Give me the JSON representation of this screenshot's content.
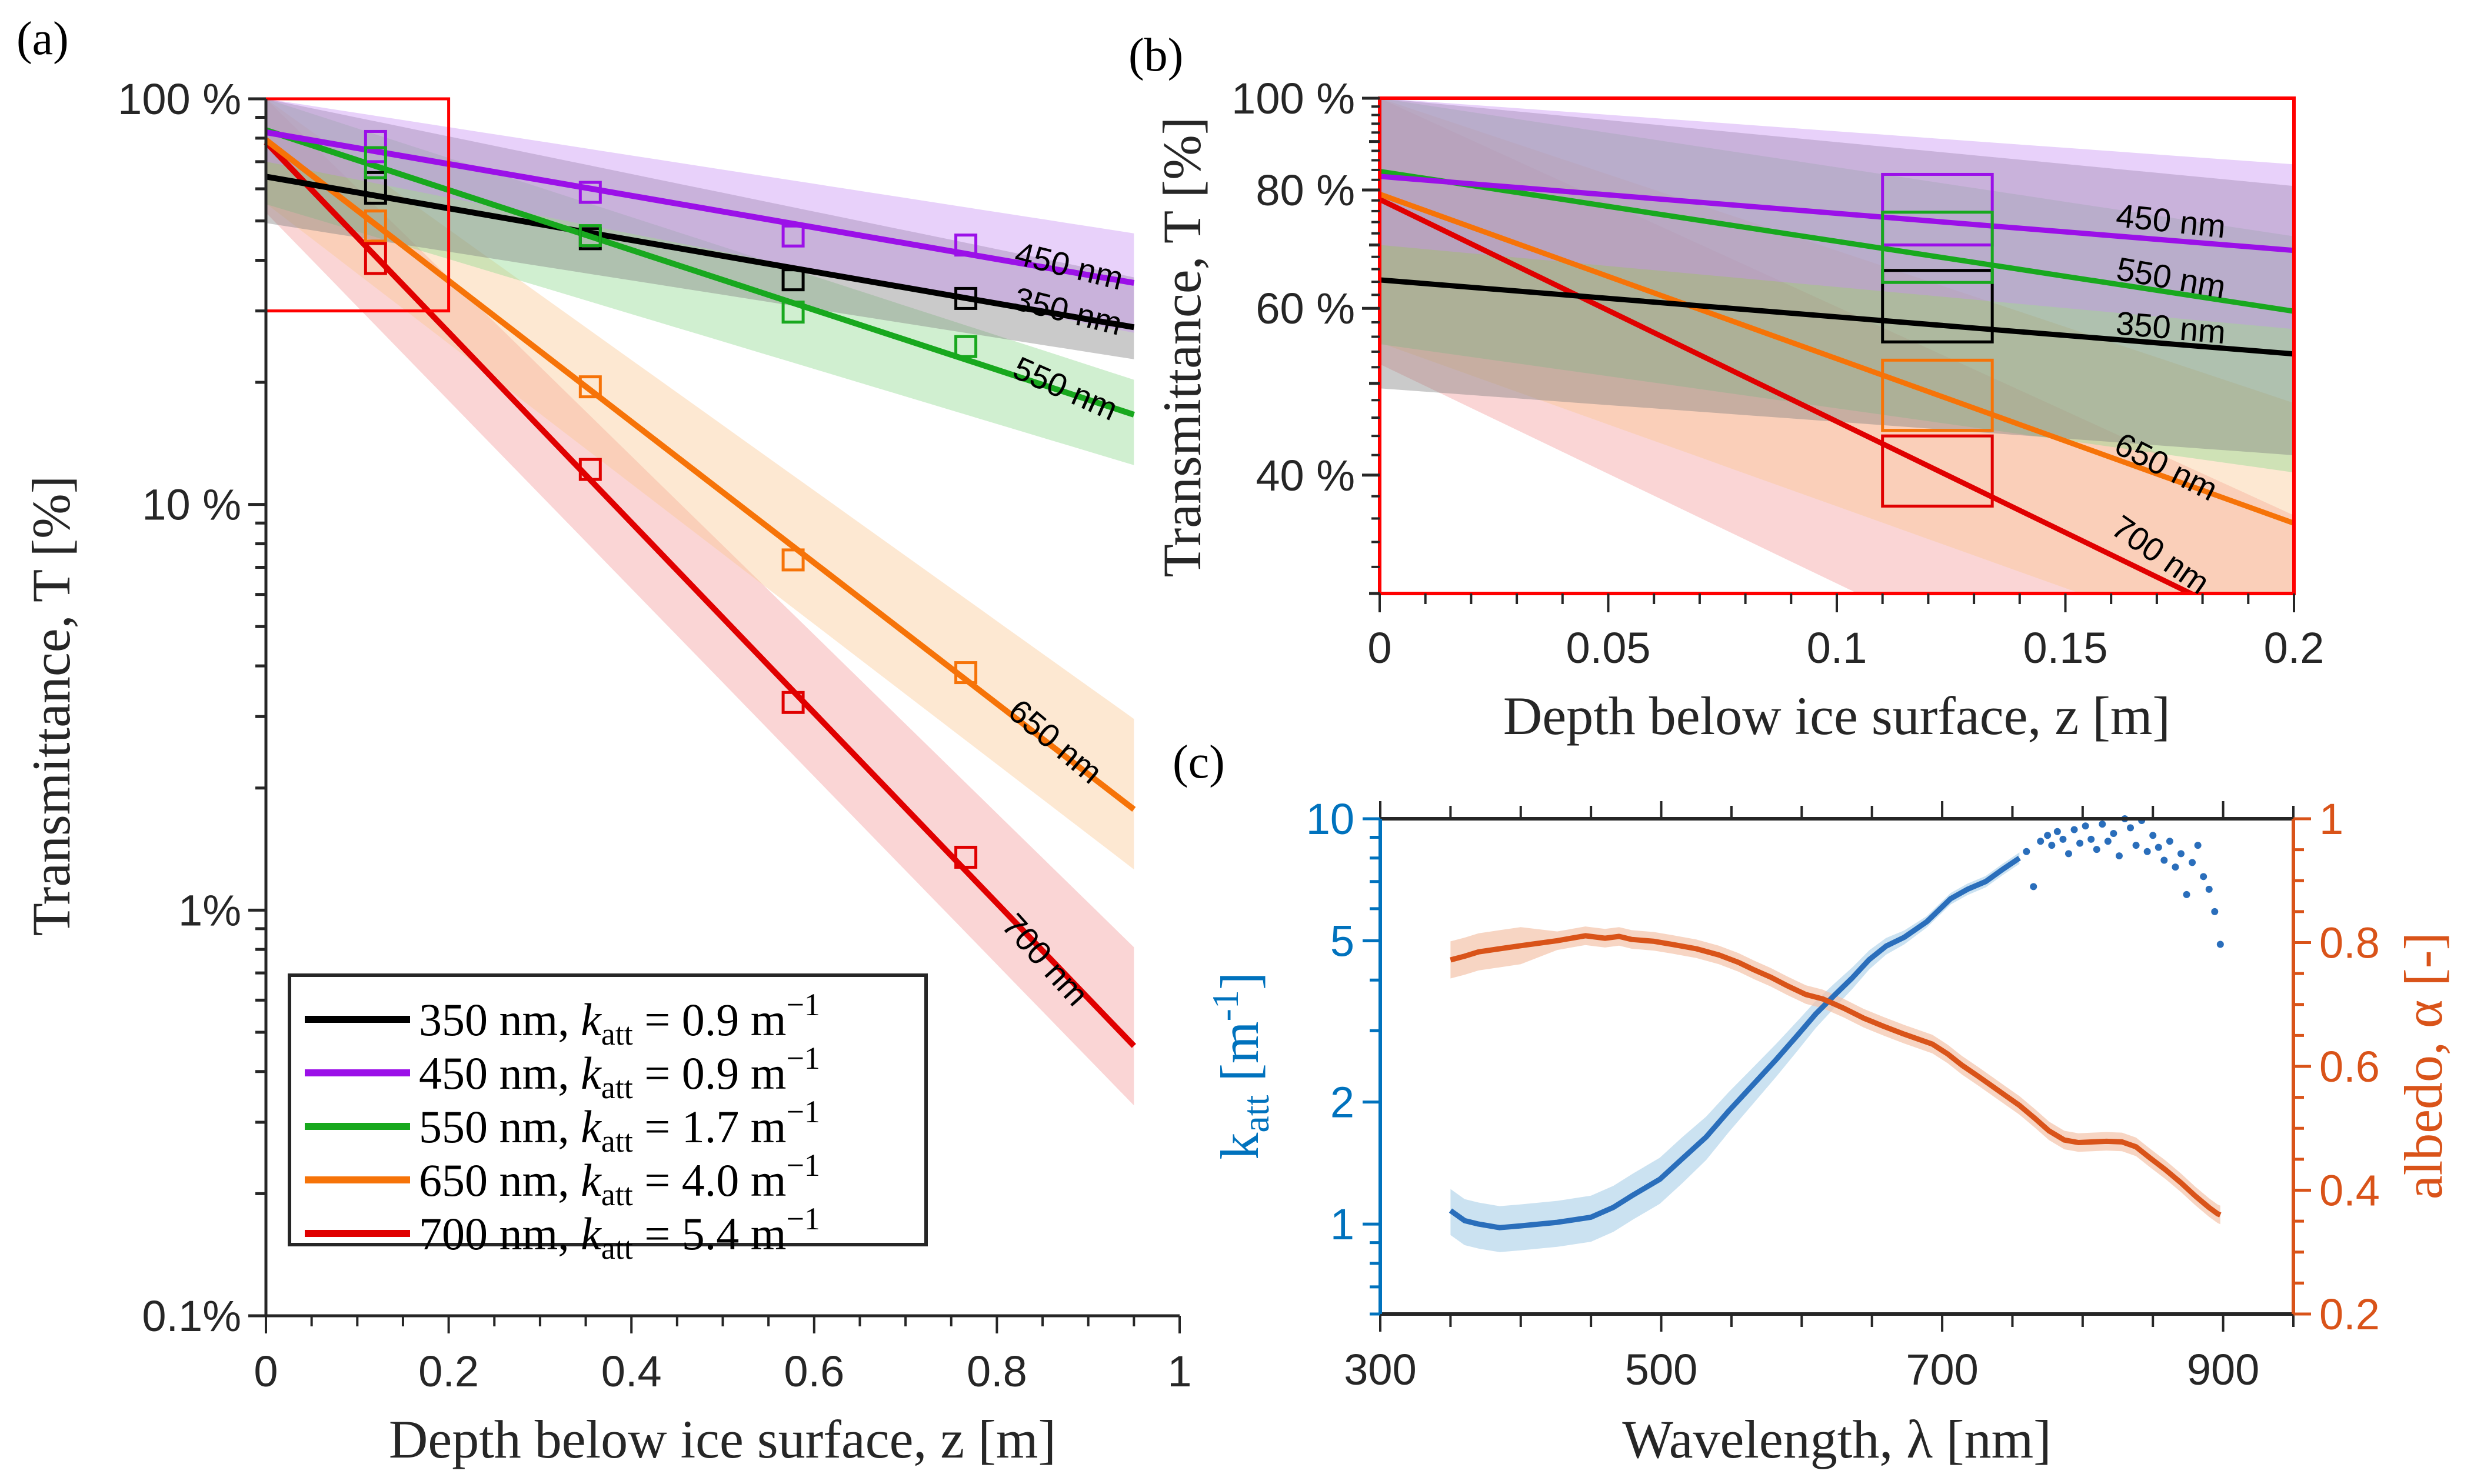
{
  "figure": {
    "panels": [
      "(a)",
      "(b)",
      "(c)"
    ]
  },
  "chart_data": [
    {
      "id": "a",
      "panel_label": "(a)",
      "type": "line",
      "title": "",
      "xlabel": "Depth below ice surface, z [m]",
      "ylabel": "Transmittance, T [%]",
      "xlim": [
        0,
        1
      ],
      "ylim": [
        0.1,
        100
      ],
      "yscale": "log",
      "xticks": [
        0,
        0.2,
        0.4,
        0.6,
        0.8,
        1
      ],
      "xtick_labels": [
        "0",
        "0.2",
        "0.4",
        "0.6",
        "0.8",
        "1"
      ],
      "yticks": [
        0.1,
        1,
        10,
        100
      ],
      "ytick_labels": [
        "0.1%",
        "1%",
        "10 %",
        "100 %"
      ],
      "grid": false,
      "legend_position": "bottom-left",
      "inset_box": {
        "xlim": [
          0,
          0.2
        ],
        "ylim": [
          30,
          100
        ],
        "color": "#ff0000"
      },
      "series": [
        {
          "name": "350 nm",
          "legend": "350 nm, k_att = 0.9 m^-1",
          "wavelength_nm": 350,
          "k_att": 0.9,
          "T0": 64.3,
          "color": "#000000",
          "band_color": "#808080",
          "x_end": 0.95,
          "band": {
            "lower_T0": 49.4,
            "lower_at_end": 22.8,
            "upper_T0": 100,
            "upper_at_end": 36.3
          },
          "points": [
            {
              "z": 0.12,
              "T_low": 55.3,
              "T_high": 65.8
            },
            {
              "z": 0.355,
              "T": 45.2
            },
            {
              "z": 0.577,
              "T": 35.8
            },
            {
              "z": 0.766,
              "T": 32.2
            }
          ],
          "label": "350 nm"
        },
        {
          "name": "450 nm",
          "legend": "450 nm, k_att = 0.9 m^-1",
          "wavelength_nm": 450,
          "k_att": 0.9,
          "T0": 82.7,
          "color": "#9b10e8",
          "band_color": "#c792f3",
          "x_end": 0.95,
          "band": {
            "lower_T0": 70,
            "lower_at_end": 26.5,
            "upper_T0": 100,
            "upper_at_end": 46.6
          },
          "points": [
            {
              "z": 0.12,
              "T_low": 70.0,
              "T_high": 83.1
            },
            {
              "z": 0.355,
              "T": 58.8
            },
            {
              "z": 0.577,
              "T": 45.9
            },
            {
              "z": 0.766,
              "T": 43.6
            }
          ],
          "label": "450 nm"
        },
        {
          "name": "550 nm",
          "legend": "550 nm, k_att = 1.7 m^-1",
          "wavelength_nm": 550,
          "k_att": 1.7,
          "T0": 83.7,
          "color": "#18a81e",
          "band_color": "#8fd98f",
          "x_end": 0.95,
          "band": {
            "lower_T0": 55,
            "lower_at_end": 12.5,
            "upper_T0": 100,
            "upper_at_end": 20.3
          },
          "points": [
            {
              "z": 0.12,
              "T_low": 63.9,
              "T_high": 75.8
            },
            {
              "z": 0.355,
              "T": 46.0
            },
            {
              "z": 0.577,
              "T": 29.8
            },
            {
              "z": 0.766,
              "T": 24.5
            }
          ],
          "label": "550 nm"
        },
        {
          "name": "650 nm",
          "legend": "650 nm, k_att = 4.0 m^-1",
          "wavelength_nm": 650,
          "k_att": 4.0,
          "T0": 79.2,
          "color": "#f67308",
          "band_color": "#fbc894",
          "x_end": 0.95,
          "band": {
            "lower_T0": 55.2,
            "lower_at_end": 1.26,
            "upper_T0": 100,
            "upper_at_end": 2.96
          },
          "points": [
            {
              "z": 0.12,
              "T_low": 44.6,
              "T_high": 52.9
            },
            {
              "z": 0.355,
              "T": 19.5
            },
            {
              "z": 0.577,
              "T": 7.3
            },
            {
              "z": 0.766,
              "T": 3.85
            }
          ],
          "label": "650 nm"
        },
        {
          "name": "700 nm",
          "legend": "700 nm, k_att = 5.4 m^-1",
          "wavelength_nm": 700,
          "k_att": 5.4,
          "T0": 78.2,
          "color": "#e00000",
          "band_color": "#f29a9a",
          "x_end": 0.95,
          "band": {
            "lower_T0": 52.4,
            "lower_at_end": 0.33,
            "upper_T0": 100,
            "upper_at_end": 0.81
          },
          "points": [
            {
              "z": 0.12,
              "T_low": 37.1,
              "T_high": 44.0
            },
            {
              "z": 0.355,
              "T": 12.2
            },
            {
              "z": 0.577,
              "T": 3.25
            },
            {
              "z": 0.766,
              "T": 1.35
            }
          ],
          "label": "700 nm"
        }
      ]
    },
    {
      "id": "b",
      "panel_label": "(b)",
      "type": "line",
      "title": "",
      "xlabel": "Depth below ice surface, z [m]",
      "ylabel": "Transmittance, T [%]",
      "xlim": [
        0,
        0.2
      ],
      "ylim": [
        30,
        100
      ],
      "yscale": "log",
      "xticks": [
        0,
        0.05,
        0.1,
        0.15,
        0.2
      ],
      "xtick_labels": [
        "0",
        "0.05",
        "0.1",
        "0.15",
        "0.2"
      ],
      "yticks": [
        40,
        60,
        80,
        100
      ],
      "ytick_labels": [
        "40 %",
        "60 %",
        "80 %",
        "100 %"
      ],
      "grid": false,
      "frame_color": "#ff0000",
      "note": "zoom of inset box from panel (a)",
      "boxes_z_range": [
        0.11,
        0.134
      ],
      "label_order": [
        "450 nm",
        "550 nm",
        "350 nm",
        "650 nm",
        "700 nm"
      ]
    },
    {
      "id": "c",
      "panel_label": "(c)",
      "type": "line",
      "title": "",
      "xlabel": "Wavelength, λ [nm]",
      "ylabel_left": "k_att [m^-1]",
      "ylabel_right": "albedo, α [-]",
      "xlim": [
        300,
        950
      ],
      "ylim_left": [
        0.6,
        10
      ],
      "yscale_left": "log",
      "ylim_right": [
        0.2,
        1
      ],
      "xticks": [
        300,
        500,
        700,
        900
      ],
      "xtick_labels": [
        "300",
        "500",
        "700",
        "900"
      ],
      "yticks_left": [
        1,
        2,
        5,
        10
      ],
      "ytick_labels_left": [
        "1",
        "2",
        "5",
        "10"
      ],
      "yticks_right": [
        0.2,
        0.4,
        0.6,
        0.8,
        1
      ],
      "ytick_labels_right": [
        "0.2",
        "0.4",
        "0.6",
        "0.8",
        "1"
      ],
      "grid": false,
      "series": [
        {
          "name": "k_att",
          "axis": "left",
          "color": "#2a6ebb",
          "band_color": "#a9cfe8",
          "band_rel": 0.13,
          "x": [
            350,
            360,
            370,
            385,
            400,
            426,
            450,
            466,
            480,
            499,
            515,
            532,
            548,
            565,
            582,
            598,
            610,
            623,
            636,
            648,
            660,
            673,
            689,
            706,
            718,
            731,
            743,
            755
          ],
          "y": [
            1.08,
            1.02,
            1.0,
            0.98,
            0.99,
            1.01,
            1.04,
            1.1,
            1.18,
            1.29,
            1.45,
            1.64,
            1.9,
            2.2,
            2.55,
            2.95,
            3.3,
            3.66,
            4.05,
            4.49,
            4.85,
            5.1,
            5.57,
            6.35,
            6.7,
            7.0,
            7.5,
            8.0
          ],
          "scatter_x": [
            760,
            765,
            770,
            775,
            778,
            782,
            786,
            790,
            794,
            798,
            802,
            806,
            810,
            814,
            818,
            822,
            826,
            830,
            834,
            838,
            842,
            846,
            850,
            854,
            858,
            862,
            866,
            870,
            874,
            878,
            882,
            886,
            890,
            894,
            898
          ],
          "scatter_y": [
            8.3,
            6.8,
            8.8,
            9.1,
            8.6,
            9.3,
            8.9,
            8.2,
            9.4,
            8.7,
            9.6,
            8.9,
            8.4,
            9.7,
            8.8,
            9.2,
            8.1,
            10.0,
            9.5,
            8.6,
            9.9,
            8.3,
            9.1,
            8.5,
            7.9,
            8.8,
            7.6,
            8.2,
            6.5,
            7.8,
            8.6,
            7.2,
            6.7,
            5.9,
            4.9
          ]
        },
        {
          "name": "albedo",
          "axis": "right",
          "color": "#d95319",
          "band_color": "#f3c3aa",
          "band_abs": 0.015,
          "x": [
            350,
            360,
            370,
            385,
            400,
            426,
            446,
            460,
            470,
            479,
            495,
            508,
            525,
            541,
            555,
            566,
            578,
            590,
            603,
            615,
            630,
            644,
            658,
            673,
            693,
            704,
            714,
            725,
            735,
            745,
            755,
            766,
            776,
            787,
            797,
            807,
            817,
            828,
            838,
            848,
            859,
            870,
            880,
            890,
            896,
            898
          ],
          "y": [
            0.772,
            0.778,
            0.785,
            0.79,
            0.795,
            0.803,
            0.811,
            0.807,
            0.81,
            0.805,
            0.802,
            0.797,
            0.79,
            0.78,
            0.768,
            0.756,
            0.744,
            0.73,
            0.716,
            0.709,
            0.694,
            0.678,
            0.665,
            0.652,
            0.636,
            0.62,
            0.602,
            0.585,
            0.569,
            0.553,
            0.537,
            0.516,
            0.496,
            0.481,
            0.477,
            0.478,
            0.479,
            0.478,
            0.47,
            0.452,
            0.433,
            0.412,
            0.391,
            0.372,
            0.362,
            0.36
          ]
        }
      ]
    }
  ]
}
